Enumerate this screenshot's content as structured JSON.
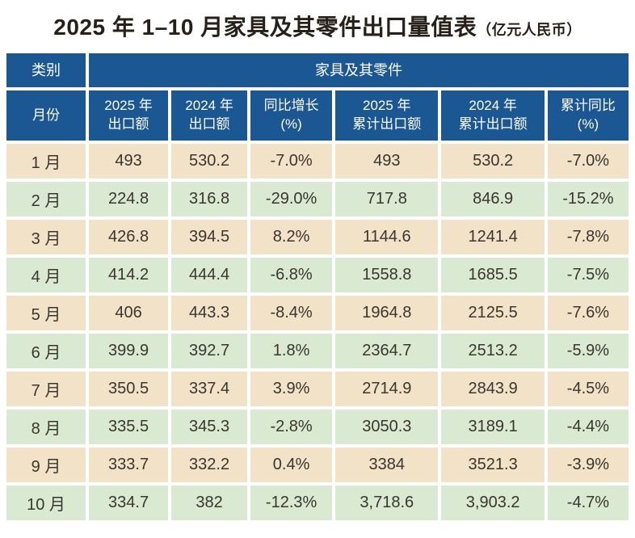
{
  "title": {
    "main": "2025 年 1–10 月家具及其零件出口量值表",
    "unit": "（亿元人民币）"
  },
  "chart_data": {
    "type": "table",
    "title": "2025 年 1–10 月家具及其零件出口量值表（亿元人民币）",
    "category_label": "类别",
    "group_header": "家具及其零件",
    "month_label": "月份",
    "column_headers": [
      "2025 年\n出口额",
      "2024 年\n出口额",
      "同比增长\n(%)",
      "2025 年\n累计出口额",
      "2024 年\n累计出口额",
      "累计同比\n(%)"
    ],
    "rows": [
      [
        "1 月",
        "493",
        "530.2",
        "-7.0%",
        "493",
        "530.2",
        "-7.0%"
      ],
      [
        "2 月",
        "224.8",
        "316.8",
        "-29.0%",
        "717.8",
        "846.9",
        "-15.2%"
      ],
      [
        "3 月",
        "426.8",
        "394.5",
        "8.2%",
        "1144.6",
        "1241.4",
        "-7.8%"
      ],
      [
        "4 月",
        "414.2",
        "444.4",
        "-6.8%",
        "1558.8",
        "1685.5",
        "-7.5%"
      ],
      [
        "5 月",
        "406",
        "443.3",
        "-8.4%",
        "1964.8",
        "2125.5",
        "-7.6%"
      ],
      [
        "6 月",
        "399.9",
        "392.7",
        "1.8%",
        "2364.7",
        "2513.2",
        "-5.9%"
      ],
      [
        "7 月",
        "350.5",
        "337.4",
        "3.9%",
        "2714.9",
        "2843.9",
        "-4.5%"
      ],
      [
        "8 月",
        "335.5",
        "345.3",
        "-2.8%",
        "3050.3",
        "3189.1",
        "-4.4%"
      ],
      [
        "9 月",
        "333.7",
        "332.2",
        "0.4%",
        "3384",
        "3521.3",
        "-3.9%"
      ],
      [
        "10 月",
        "334.7",
        "382",
        "-12.3%",
        "3,718.6",
        "3,903.2",
        "-4.7%"
      ]
    ],
    "row_stripe_order": [
      "tan",
      "green"
    ]
  },
  "colors": {
    "header_bg": "#1a5793",
    "header_text": "#ffffff",
    "row_tan": "#f2e2c8",
    "row_green": "#d9e9d2",
    "cell_text": "#3a362e",
    "title_text": "#272019",
    "grid_gap": "#ffffff"
  }
}
